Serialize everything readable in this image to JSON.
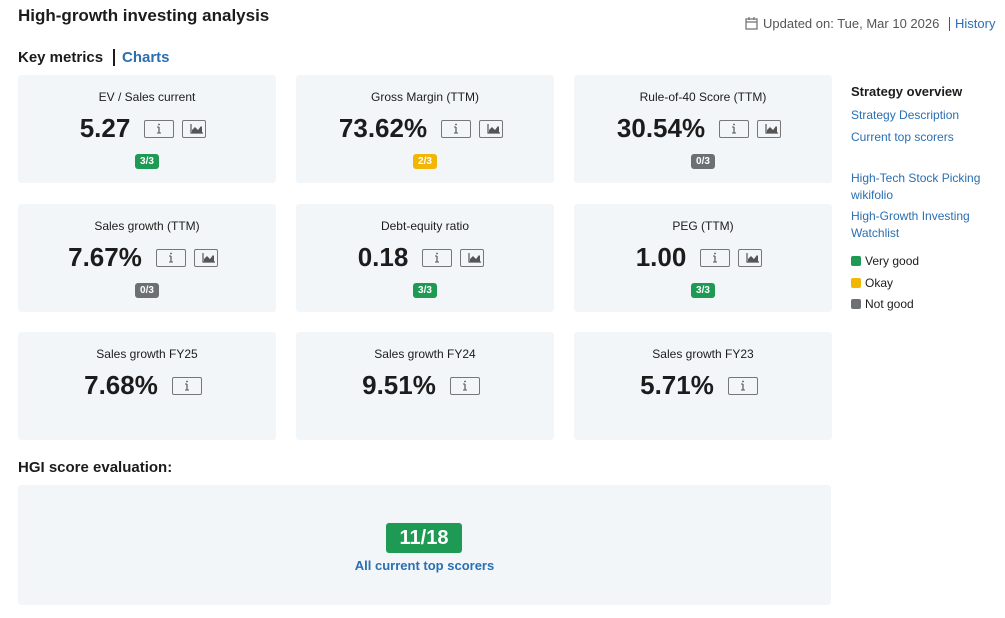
{
  "header": {
    "title": "High-growth investing analysis",
    "updated": "Updated on: Tue, Mar 10 2026",
    "history": "History"
  },
  "section_title": "Key metrics",
  "charts_link": "Charts",
  "metrics": [
    {
      "label": "EV / Sales current",
      "value": "5.27",
      "score": "3/3",
      "score_color": "#1e9a55",
      "chart_icon": true
    },
    {
      "label": "Gross Margin (TTM)",
      "value": "73.62%",
      "score": "2/3",
      "score_color": "#f2b705",
      "chart_icon": true
    },
    {
      "label": "Rule-of-40 Score (TTM)",
      "value": "30.54%",
      "score": "0/3",
      "score_color": "#6c7075",
      "chart_icon": true
    },
    {
      "label": "Sales growth (TTM)",
      "value": "7.67%",
      "score": "0/3",
      "score_color": "#6c7075",
      "chart_icon": true
    },
    {
      "label": "Debt-equity ratio",
      "value": "0.18",
      "score": "3/3",
      "score_color": "#1e9a55",
      "chart_icon": true
    },
    {
      "label": "PEG (TTM)",
      "value": "1.00",
      "score": "3/3",
      "score_color": "#1e9a55",
      "chart_icon": true
    },
    {
      "label": "Sales growth FY25",
      "value": "7.68%",
      "chart_icon": false
    },
    {
      "label": "Sales growth FY24",
      "value": "9.51%",
      "chart_icon": false
    },
    {
      "label": "Sales growth FY23",
      "value": "5.71%",
      "chart_icon": false
    }
  ],
  "evaluation": {
    "title": "HGI score evaluation:",
    "score": "11/18",
    "score_color": "#1e9a55",
    "link": "All current top scorers"
  },
  "sidebar": {
    "title": "Strategy overview",
    "links": [
      "Strategy Description",
      "Current top scorers"
    ],
    "external_links": [
      "High-Tech Stock Picking wikifolio",
      "High-Growth Investing Watchlist"
    ],
    "legend": [
      {
        "label": "Very good",
        "color": "#1e9a55"
      },
      {
        "label": "Okay",
        "color": "#f2b705"
      },
      {
        "label": "Not good",
        "color": "#6c7075"
      }
    ]
  }
}
